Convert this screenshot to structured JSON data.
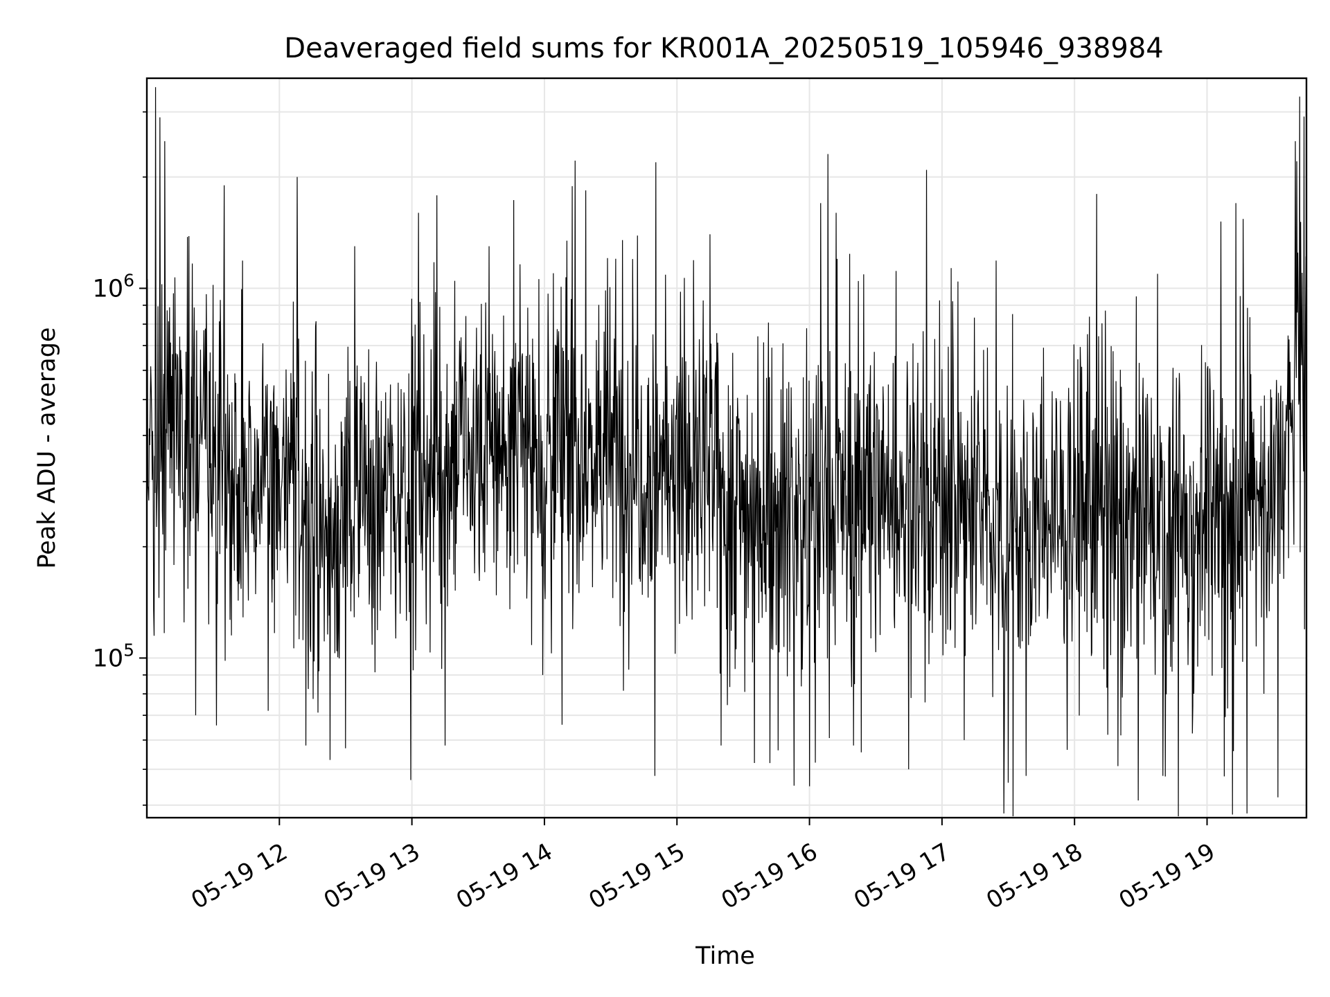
{
  "chart_data": {
    "type": "line",
    "title": "Deaveraged field sums for KR001A_20250519_105946_938984",
    "xlabel": "Time",
    "ylabel": "Peak ADU - average",
    "x_start": "2025-05-19 11:00",
    "x_end": "2025-05-19 19:45",
    "xlim": [
      "05-19 11:00",
      "05-19 19:45"
    ],
    "ylim": [
      37000,
      3700000
    ],
    "yscale": "log",
    "grid": true,
    "line_color": "#000000",
    "grid_color": "#e6e6e6",
    "x_ticks": [
      "05-19 12",
      "05-19 13",
      "05-19 14",
      "05-19 15",
      "05-19 16",
      "05-19 17",
      "05-19 18",
      "05-19 19"
    ],
    "x_tick_hours": [
      12,
      13,
      14,
      15,
      16,
      17,
      18,
      19
    ],
    "y_major_ticks": [
      {
        "value": 100000,
        "base": "10",
        "exp": "5"
      },
      {
        "value": 1000000,
        "base": "10",
        "exp": "6"
      }
    ],
    "y_minor_ticks": [
      40000,
      50000,
      60000,
      70000,
      80000,
      90000,
      200000,
      300000,
      400000,
      500000,
      600000,
      700000,
      800000,
      900000,
      2000000,
      3000000
    ],
    "series": [
      {
        "name": "",
        "sampling": "approximately 2400 samples, noise-like signal roughly between 5e4 and 3.5e6",
        "anchors": [
          {
            "t": "11:00",
            "y": 350000
          },
          {
            "t": "11:10",
            "y": 500000
          },
          {
            "t": "11:30",
            "y": 350000
          },
          {
            "t": "12:00",
            "y": 300000
          },
          {
            "t": "12:20",
            "y": 220000
          },
          {
            "t": "12:40",
            "y": 280000
          },
          {
            "t": "13:00",
            "y": 310000
          },
          {
            "t": "13:30",
            "y": 370000
          },
          {
            "t": "14:00",
            "y": 380000
          },
          {
            "t": "14:30",
            "y": 360000
          },
          {
            "t": "15:00",
            "y": 340000
          },
          {
            "t": "15:30",
            "y": 260000
          },
          {
            "t": "16:00",
            "y": 250000
          },
          {
            "t": "16:30",
            "y": 290000
          },
          {
            "t": "17:00",
            "y": 270000
          },
          {
            "t": "17:30",
            "y": 230000
          },
          {
            "t": "18:00",
            "y": 250000
          },
          {
            "t": "18:30",
            "y": 230000
          },
          {
            "t": "19:00",
            "y": 240000
          },
          {
            "t": "19:30",
            "y": 290000
          },
          {
            "t": "19:38",
            "y": 400000
          },
          {
            "t": "19:45",
            "y": 1000000
          }
        ],
        "spikes": [
          {
            "t": "11:04",
            "y": 3500000
          },
          {
            "t": "11:06",
            "y": 2900000
          },
          {
            "t": "11:08",
            "y": 2500000
          },
          {
            "t": "11:35",
            "y": 1900000
          },
          {
            "t": "12:08",
            "y": 2000000
          },
          {
            "t": "12:34",
            "y": 1300000
          },
          {
            "t": "13:03",
            "y": 1600000
          },
          {
            "t": "13:35",
            "y": 1300000
          },
          {
            "t": "14:40",
            "y": 1200000
          },
          {
            "t": "15:15",
            "y": 1400000
          },
          {
            "t": "16:05",
            "y": 1700000
          },
          {
            "t": "16:12",
            "y": 1600000
          },
          {
            "t": "18:10",
            "y": 1800000
          },
          {
            "t": "19:13",
            "y": 1700000
          },
          {
            "t": "19:42",
            "y": 3300000
          },
          {
            "t": "19:40",
            "y": 2500000
          }
        ],
        "dips": [
          {
            "t": "11:22",
            "y": 70000
          },
          {
            "t": "11:55",
            "y": 72000
          },
          {
            "t": "12:12",
            "y": 58000
          },
          {
            "t": "12:23",
            "y": 53000
          },
          {
            "t": "12:30",
            "y": 57000
          },
          {
            "t": "13:15",
            "y": 58000
          },
          {
            "t": "14:08",
            "y": 66000
          },
          {
            "t": "14:50",
            "y": 48000
          },
          {
            "t": "15:20",
            "y": 58000
          },
          {
            "t": "15:42",
            "y": 52000
          },
          {
            "t": "16:00",
            "y": 45000
          },
          {
            "t": "16:20",
            "y": 58000
          },
          {
            "t": "16:45",
            "y": 50000
          },
          {
            "t": "17:10",
            "y": 60000
          },
          {
            "t": "17:28",
            "y": 38000
          },
          {
            "t": "17:30",
            "y": 46000
          },
          {
            "t": "17:38",
            "y": 48000
          },
          {
            "t": "18:15",
            "y": 62000
          },
          {
            "t": "18:40",
            "y": 48000
          },
          {
            "t": "19:12",
            "y": 56000
          },
          {
            "t": "19:18",
            "y": 38000
          },
          {
            "t": "19:32",
            "y": 42000
          }
        ]
      }
    ]
  }
}
